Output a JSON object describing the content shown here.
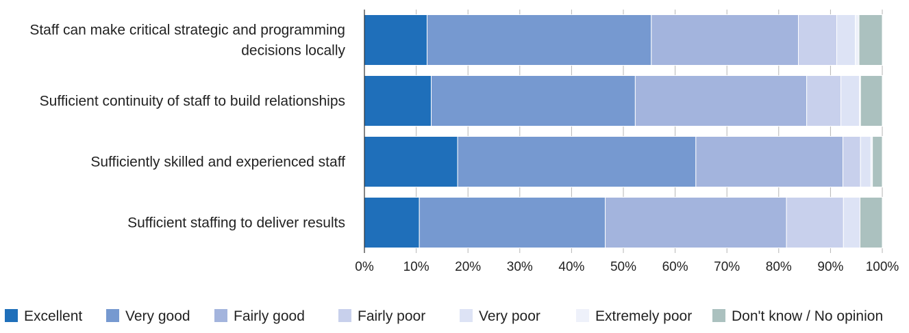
{
  "chart_data": {
    "type": "bar",
    "orientation": "horizontal",
    "stacked": true,
    "categories": [
      [
        "Staff can make critical strategic and programming",
        "decisions locally"
      ],
      [
        "Sufficient continuity of staff to build relationships"
      ],
      [
        "Sufficiently skilled and experienced staff"
      ],
      [
        "Sufficient staffing to deliver results"
      ]
    ],
    "series": [
      {
        "name": "Excellent",
        "color": "#1f6fba",
        "values": [
          12.1,
          12.9,
          18.0,
          10.6
        ]
      },
      {
        "name": "Very good",
        "color": "#7699d0",
        "values": [
          43.3,
          39.4,
          46.0,
          35.9
        ]
      },
      {
        "name": "Fairly good",
        "color": "#a3b4dd",
        "values": [
          28.4,
          33.1,
          28.4,
          35.0
        ]
      },
      {
        "name": "Fairly poor",
        "color": "#c8d0ec",
        "values": [
          7.4,
          6.6,
          3.4,
          11.0
        ]
      },
      {
        "name": "Very poor",
        "color": "#dde3f5",
        "values": [
          3.6,
          3.6,
          2.0,
          3.2
        ]
      },
      {
        "name": "Extremely poor",
        "color": "#eef1fa",
        "values": [
          0.7,
          0.2,
          0.3,
          0.0
        ]
      },
      {
        "name": "Don't know / No opinion",
        "color": "#abc1bf",
        "values": [
          4.5,
          4.2,
          1.9,
          4.3
        ]
      }
    ],
    "x_ticks": [
      "0%",
      "10%",
      "20%",
      "30%",
      "40%",
      "50%",
      "60%",
      "70%",
      "80%",
      "90%",
      "100%"
    ],
    "xlim": [
      0,
      100
    ],
    "grid": true,
    "legend_position": "bottom"
  }
}
